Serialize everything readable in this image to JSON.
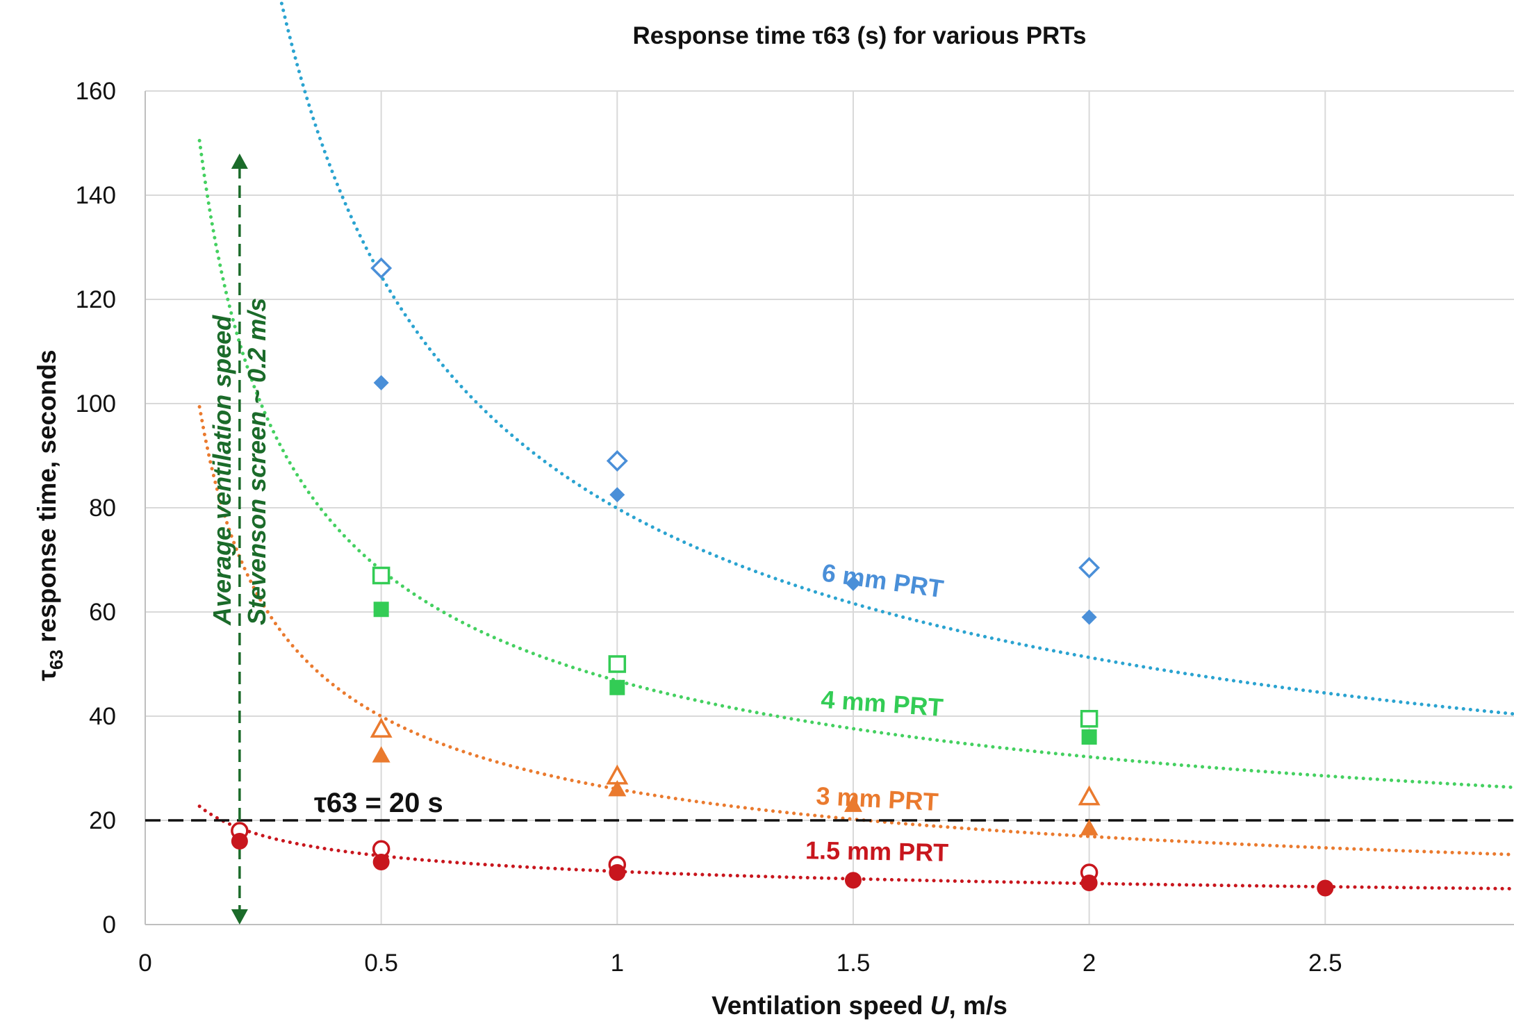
{
  "chart_data": {
    "type": "scatter",
    "title": "Response time τ63 (s) for various PRTs",
    "xlabel_prefix": "Ventilation speed ",
    "xlabel_var": "U",
    "xlabel_suffix": ", m/s",
    "ylabel_tau": "τ",
    "ylabel_sub": "63",
    "ylabel_rest": " response time, seconds",
    "xlim": [
      0,
      2.9
    ],
    "ylim": [
      0,
      160
    ],
    "x_ticks": [
      0,
      0.5,
      1,
      1.5,
      2,
      2.5
    ],
    "x_tick_labels": [
      "0",
      "0.5",
      "1",
      "1.5",
      "2",
      "2.5"
    ],
    "y_ticks": [
      0,
      20,
      40,
      60,
      80,
      100,
      120,
      140,
      160
    ],
    "y_tick_labels": [
      "0",
      "20",
      "40",
      "60",
      "80",
      "100",
      "120",
      "140",
      "160"
    ],
    "grid": true,
    "series": [
      {
        "name": "6 mm PRT",
        "color": "#4a8fd8",
        "trend_color": "#2aa3d0",
        "marker": "diamond",
        "filled": [
          [
            0.5,
            104
          ],
          [
            1,
            82.5
          ],
          [
            1.5,
            65.5
          ],
          [
            2,
            59
          ]
        ],
        "open": [
          [
            0.5,
            126
          ],
          [
            1,
            89
          ],
          [
            2,
            68.5
          ]
        ],
        "trend": {
          "a": 79.9,
          "b": -0.64,
          "x_start": 0.185,
          "x_end": 2.9
        }
      },
      {
        "name": "4 mm PRT",
        "color": "#33cc55",
        "trend_color": "#44d060",
        "marker": "square",
        "filled": [
          [
            0.5,
            60.5
          ],
          [
            1,
            45.5
          ],
          [
            2,
            36
          ]
        ],
        "open": [
          [
            0.5,
            67
          ],
          [
            1,
            50
          ],
          [
            2,
            39.5
          ]
        ],
        "trend": {
          "a": 46.8,
          "b": -0.54,
          "x_start": 0.115,
          "x_end": 2.9
        }
      },
      {
        "name": "3 mm PRT",
        "color": "#ea7a2e",
        "trend_color": "#ea7a2e",
        "marker": "triangle",
        "filled": [
          [
            0.5,
            32.5
          ],
          [
            1,
            26
          ],
          [
            1.5,
            23
          ],
          [
            2,
            18.5
          ]
        ],
        "open": [
          [
            0.5,
            37.5
          ],
          [
            1,
            28.5
          ],
          [
            2,
            24.5
          ]
        ],
        "trend": {
          "a": 26.0,
          "b": -0.62,
          "x_start": 0.115,
          "x_end": 2.9
        }
      },
      {
        "name": "1.5 mm PRT",
        "color": "#c8161d",
        "trend_color": "#c8161d",
        "marker": "circle",
        "filled": [
          [
            0.2,
            16
          ],
          [
            0.5,
            12
          ],
          [
            1,
            10
          ],
          [
            1.5,
            8.5
          ],
          [
            2,
            8
          ],
          [
            2.5,
            7
          ]
        ],
        "open": [
          [
            0.2,
            18
          ],
          [
            0.5,
            14.5
          ],
          [
            1,
            11.5
          ],
          [
            2,
            10
          ]
        ],
        "trend": {
          "a": 10.2,
          "b": -0.37,
          "x_start": 0.115,
          "x_end": 2.9
        }
      }
    ],
    "reference_line": {
      "y": 20,
      "label": "τ63 = 20 s",
      "color": "#111111"
    },
    "ventilation_marker": {
      "x": 0.2,
      "y_top": 148,
      "y_bottom": 0,
      "color": "#1b6b2a",
      "label_line1": "Average ventilation speed",
      "label_line2": "Stevenson screen ~ 0.2 m/s"
    }
  }
}
